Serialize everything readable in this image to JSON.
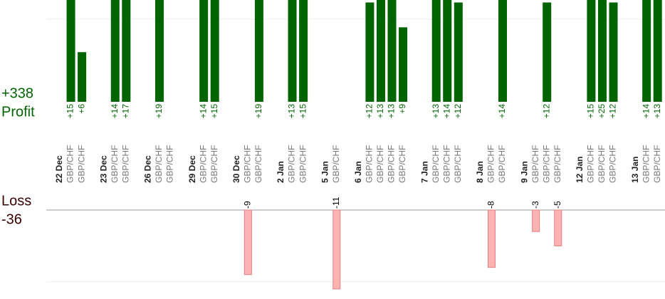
{
  "chart_data": {
    "type": "profit-loss",
    "profit_label": "Profit",
    "loss_label": "Loss",
    "profit_total": "+338",
    "loss_total": "-36",
    "profit_color": "#006400",
    "loss_color": "#ffb3b3",
    "profit_ylim": [
      0,
      12.3
    ],
    "loss_ylim": [
      -12.4,
      0
    ],
    "profit_gridlines": [
      10
    ],
    "loss_gridlines": [
      -10
    ],
    "days": [
      {
        "date": "22 Dec",
        "trades": [
          {
            "pair": "GBP/CHF",
            "value": 15,
            "value_label": "+15"
          },
          {
            "pair": "GBP/CHF",
            "value": 6,
            "value_label": "+6"
          }
        ]
      },
      {
        "date": "23 Dec",
        "trades": [
          {
            "pair": "GBP/CHF",
            "value": 14,
            "value_label": "+14"
          },
          {
            "pair": "GBP/CHF",
            "value": 17,
            "value_label": "+17"
          }
        ]
      },
      {
        "date": "26 Dec",
        "trades": [
          {
            "pair": "GBP/CHF",
            "value": 19,
            "value_label": "+19"
          },
          {
            "pair": "GBP/CHF",
            "value": null
          }
        ]
      },
      {
        "date": "29 Dec",
        "trades": [
          {
            "pair": "GBP/CHF",
            "value": 14,
            "value_label": "+14"
          },
          {
            "pair": "GBP/CHF",
            "value": 15,
            "value_label": "+15"
          }
        ]
      },
      {
        "date": "30 Dec",
        "trades": [
          {
            "pair": "GBP/CHF",
            "value": -9
          },
          {
            "pair": "GBP/CHF",
            "value": 19,
            "value_label": "+19"
          }
        ]
      },
      {
        "date": "2 Jan",
        "trades": [
          {
            "pair": "GBP/CHF",
            "value": 13,
            "value_label": "+13"
          },
          {
            "pair": "GBP/CHF",
            "value": 15,
            "value_label": "+15"
          }
        ]
      },
      {
        "date": "5 Jan",
        "trades": [
          {
            "pair": "GBP/CHF",
            "value": -11
          }
        ]
      },
      {
        "date": "6 Jan",
        "trades": [
          {
            "pair": "GBP/CHF",
            "value": 12,
            "value_label": "+12"
          },
          {
            "pair": "GBP/CHF",
            "value": 13,
            "value_label": "+13"
          },
          {
            "pair": "GBP/CHF",
            "value": 13,
            "value_label": "+13"
          },
          {
            "pair": "GBP/CHF",
            "value": 9,
            "value_label": "+9"
          }
        ]
      },
      {
        "date": "7 Jan",
        "trades": [
          {
            "pair": "GBP/CHF",
            "value": 13,
            "value_label": "+13"
          },
          {
            "pair": "GBP/CHF",
            "value": 14,
            "value_label": "+14"
          },
          {
            "pair": "GBP/CHF",
            "value": 12,
            "value_label": "+12"
          }
        ]
      },
      {
        "date": "8 Jan",
        "trades": [
          {
            "pair": "GBP/CHF",
            "value": -8
          },
          {
            "pair": "GBP/CHF",
            "value": 14,
            "value_label": "+14"
          }
        ]
      },
      {
        "date": "9 Jan",
        "trades": [
          {
            "pair": "GBP/CHF",
            "value": -3
          },
          {
            "pair": "GBP/CHF",
            "value": 12,
            "value_label": "+12"
          },
          {
            "pair": "GBP/CHF",
            "value": -5
          }
        ]
      },
      {
        "date": "12 Jan",
        "trades": [
          {
            "pair": "GBP/CHF",
            "value": 15,
            "value_label": "+15"
          },
          {
            "pair": "GBP/CHF",
            "value": 25,
            "value_label": "+25"
          },
          {
            "pair": "GBP/CHF",
            "value": 12,
            "value_label": "+12"
          }
        ]
      },
      {
        "date": "13 Jan",
        "trades": [
          {
            "pair": "GBP/CHF",
            "value": 14,
            "value_label": "+14"
          },
          {
            "pair": "GBP/CHF",
            "value": 13,
            "value_label": "+13"
          }
        ]
      }
    ]
  }
}
